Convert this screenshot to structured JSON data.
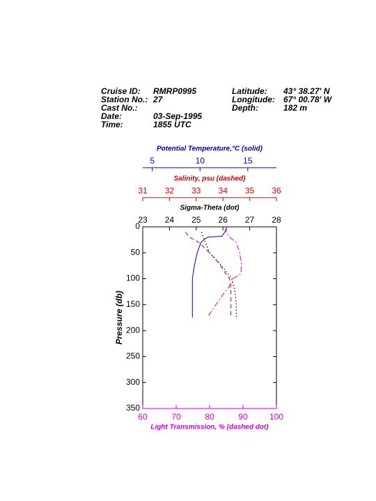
{
  "header": {
    "left": [
      {
        "label": "Cruise ID:",
        "value": "RMRP0995"
      },
      {
        "label": "Station No.:",
        "value": "27"
      },
      {
        "label": "Cast No.:"
      },
      {
        "label": "Date:",
        "value": "03-Sep-1995"
      },
      {
        "label": "Time:",
        "value": "1855 UTC"
      }
    ],
    "right": [
      {
        "label": "Latitude:",
        "value": "43° 38.27' N"
      },
      {
        "label": "Longitude:",
        "value": "67° 00.78' W"
      },
      {
        "label": "Depth:",
        "value": "182 m"
      }
    ]
  },
  "chart_data": {
    "type": "profile",
    "y_label": "Pressure (db)",
    "ylim": [
      0,
      350
    ],
    "y_inverted": true,
    "yticks": [
      0,
      50,
      100,
      150,
      200,
      250,
      300,
      350
    ],
    "series": [
      {
        "name": "Potential Temperature,°C (solid)",
        "color": "#0000aa",
        "line_style": "solid",
        "axis": "top",
        "xlim": [
          4,
          18
        ],
        "xticks": [
          5,
          10,
          15
        ],
        "pressure": [
          0,
          10,
          18,
          20,
          25,
          30,
          40,
          50,
          75,
          100,
          125,
          150,
          175
        ],
        "values": [
          12.8,
          12.6,
          12.3,
          10.8,
          10.4,
          10.1,
          9.9,
          9.7,
          9.4,
          9.2,
          9.2,
          9.2,
          9.2
        ]
      },
      {
        "name": "Salinity, psu  (dashed)",
        "color": "#cc0000",
        "line_style": "dashed",
        "axis": "top",
        "xlim": [
          31,
          36
        ],
        "xticks": [
          31,
          32,
          33,
          34,
          35,
          36
        ],
        "pressure": [
          10,
          20,
          30,
          50,
          70,
          90,
          100,
          125,
          150,
          175
        ],
        "values": [
          32.6,
          32.75,
          33.1,
          33.5,
          33.85,
          34.1,
          34.25,
          34.3,
          34.3,
          34.3
        ]
      },
      {
        "name": "Sigma-Theta (dot)",
        "color": "#000000",
        "line_style": "dot",
        "axis": "top",
        "xlim": [
          23,
          28
        ],
        "xticks": [
          23,
          24,
          25,
          26,
          27,
          28
        ],
        "pressure": [
          10,
          25,
          50,
          75,
          100,
          125,
          150,
          175
        ],
        "values": [
          25.2,
          25.3,
          25.5,
          25.95,
          26.33,
          26.45,
          26.5,
          26.5
        ]
      },
      {
        "name": "Light Transmission, % (dashed dot)",
        "color": "#cc00cc",
        "line_style": "dashdot",
        "axis": "bottom",
        "xlim": [
          60,
          100
        ],
        "xticks": [
          60,
          70,
          80,
          90,
          100
        ],
        "pressure": [
          0,
          10,
          20,
          30,
          50,
          70,
          90,
          100,
          110,
          125,
          150,
          170,
          175
        ],
        "values": [
          85,
          85,
          86,
          88,
          89,
          89.5,
          89.4,
          87,
          86.6,
          84.6,
          81.9,
          79.8,
          80.2
        ]
      }
    ]
  }
}
